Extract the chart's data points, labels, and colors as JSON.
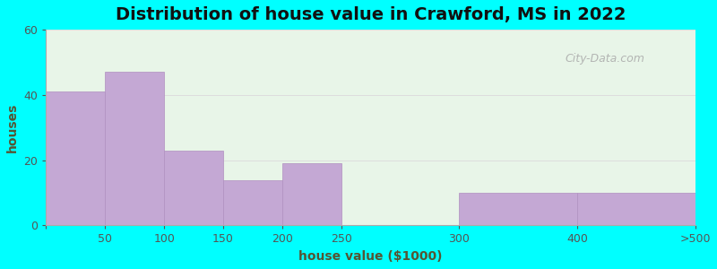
{
  "title": "Distribution of house value in Crawford, MS in 2022",
  "xlabel": "house value ($1000)",
  "ylabel": "houses",
  "background_color": "#00FFFF",
  "plot_bg_color": "#e8f5e8",
  "bar_color": "#c4a8d4",
  "bar_edge_color": "#b090c0",
  "tick_labels": [
    "50",
    "100",
    "150",
    "200",
    "250",
    "300",
    "400",
    ">500"
  ],
  "tick_positions": [
    0,
    1,
    2,
    3,
    4,
    5,
    7,
    9
  ],
  "bar_lefts": [
    0,
    1,
    2,
    3,
    4,
    5,
    7
  ],
  "bar_widths": [
    1,
    1,
    1,
    1,
    1,
    2,
    2
  ],
  "values": [
    41,
    47,
    23,
    14,
    19,
    0,
    10,
    10
  ],
  "bar_values": [
    41,
    47,
    23,
    14,
    19,
    0,
    10
  ],
  "ylim": [
    0,
    60
  ],
  "yticks": [
    0,
    20,
    40,
    60
  ],
  "title_fontsize": 14,
  "axis_label_fontsize": 10,
  "tick_fontsize": 9,
  "watermark_text": "City-Data.com",
  "grid_color": "#dddddd",
  "label_color": "#555533",
  "title_color": "#111111"
}
